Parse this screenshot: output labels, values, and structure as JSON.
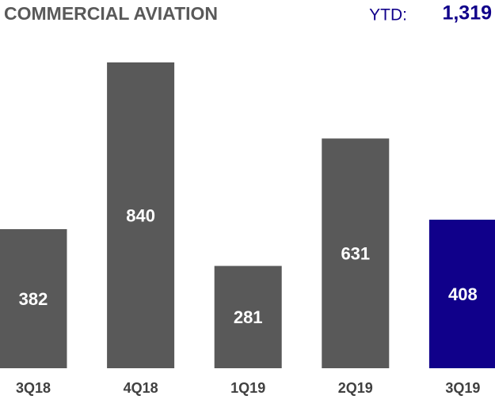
{
  "chart_data": {
    "type": "bar",
    "title": "COMMERCIAL AVIATION",
    "annotations": {
      "ytd_label": "YTD:",
      "ytd_value": "1,319"
    },
    "categories": [
      "3Q18",
      "4Q18",
      "1Q19",
      "2Q19",
      "3Q19"
    ],
    "values": [
      382,
      840,
      281,
      631,
      408
    ],
    "colors": [
      "#595959",
      "#595959",
      "#595959",
      "#595959",
      "#10008a"
    ]
  }
}
